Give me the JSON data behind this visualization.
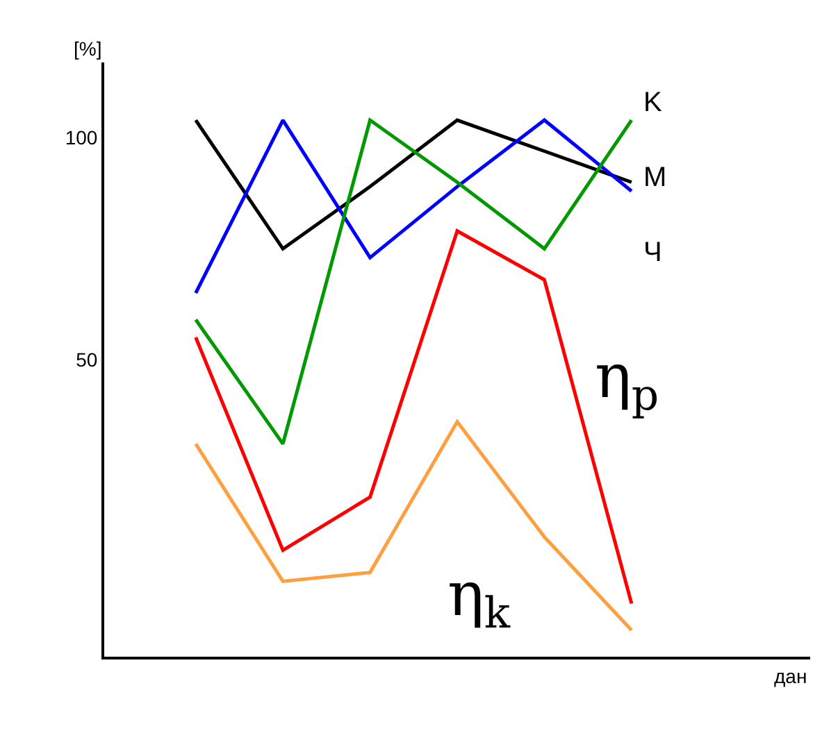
{
  "chart_data": {
    "type": "line",
    "ylabel": "[%]",
    "categories": [
      null,
      null,
      null,
      null,
      null,
      null
    ],
    "ylim": [
      -17,
      117
    ],
    "yticks": [
      50,
      100
    ],
    "tick_labels": "y",
    "marker": "none",
    "line_style": "solid",
    "annotations": [
      "K",
      "M",
      "Ч",
      "дан"
    ],
    "series": [
      {
        "color": "#000000",
        "values": [
          104,
          75,
          89,
          104,
          97,
          90
        ]
      },
      {
        "color": "#0000ff",
        "values": [
          65,
          104,
          73,
          89,
          104,
          88
        ]
      },
      {
        "color": "#009900",
        "values": [
          59,
          31,
          104,
          90,
          75,
          104
        ]
      },
      {
        "name": "η$_{p}$",
        "color": "#ff0000",
        "values": [
          55,
          7,
          19,
          79,
          68,
          -5
        ]
      },
      {
        "name": "η$_{k}$",
        "color": "#ffa040",
        "values": [
          31,
          0,
          2,
          36,
          10,
          -11
        ]
      }
    ]
  }
}
